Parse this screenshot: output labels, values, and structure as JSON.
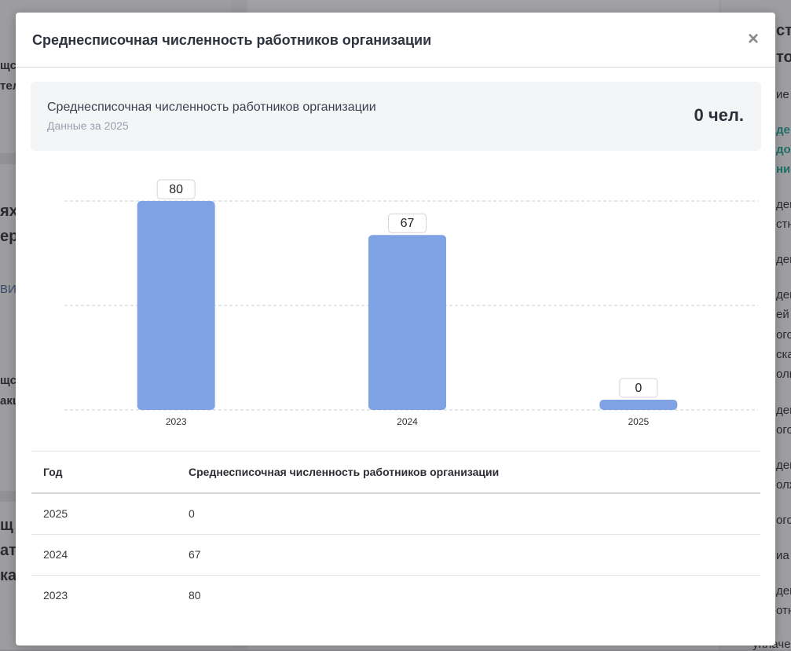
{
  "modal": {
    "title": "Среднесписочная численность работников организации",
    "close_label": "×",
    "summary": {
      "title": "Среднесписочная численность работников организации",
      "subtitle": "Данные за 2025",
      "value": "0 чел."
    }
  },
  "chart_data": {
    "type": "bar",
    "categories": [
      "2023",
      "2024",
      "2025"
    ],
    "values": [
      80,
      67,
      0
    ],
    "title": "",
    "xlabel": "",
    "ylabel": "",
    "ylim": [
      0,
      80
    ],
    "grid": true,
    "bar_color": "#7fa2e4"
  },
  "table": {
    "headers": [
      "Год",
      "Среднесписочная численность работников организации"
    ],
    "rows": [
      [
        "2025",
        "0"
      ],
      [
        "2024",
        "67"
      ],
      [
        "2023",
        "80"
      ]
    ]
  },
  "background": {
    "left": [
      "щс",
      "тел",
      "ях",
      "ере",
      "ВИ",
      "щс",
      "акц",
      "щ",
      "ат",
      "кан"
    ],
    "right": [
      "ст",
      "то",
      "ие",
      "ден",
      "дох",
      "ни",
      "ден",
      "стн",
      "ден",
      "ден",
      "ей",
      "ого",
      "ска",
      "олн",
      "ден",
      "ого",
      "ден",
      "олж",
      "ого",
      "иа",
      "ден",
      "отн",
      "уплаче"
    ]
  }
}
